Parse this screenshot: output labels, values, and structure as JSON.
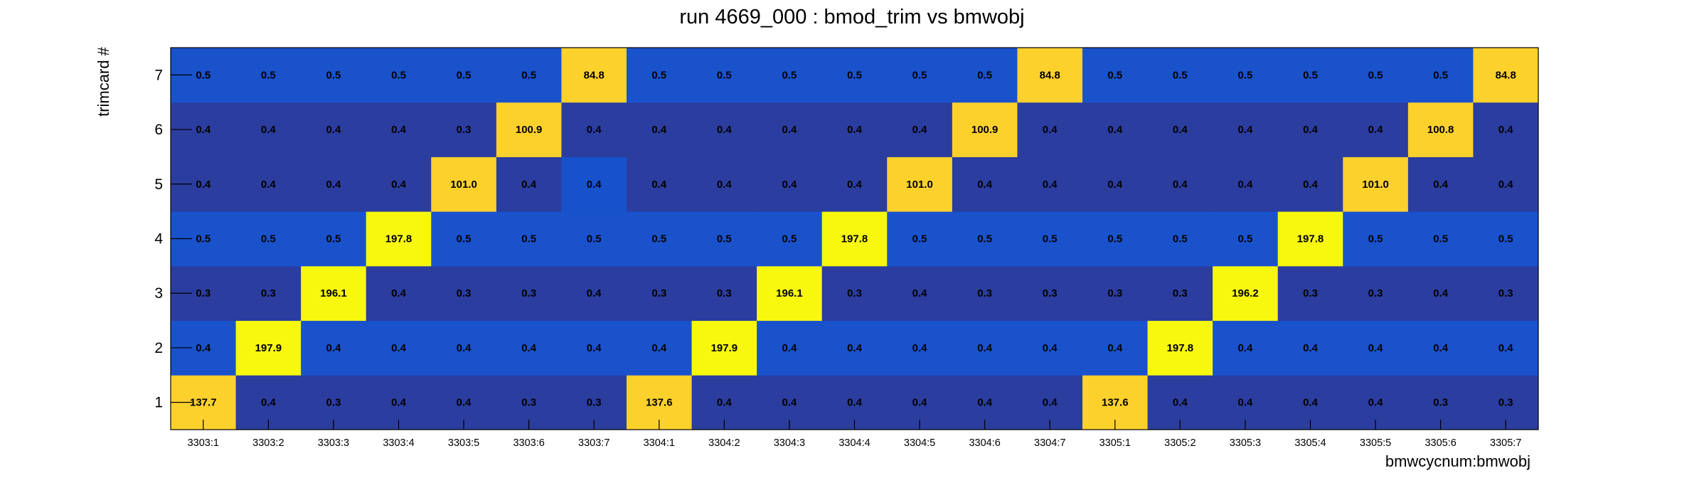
{
  "chart_data": {
    "type": "heatmap",
    "title": "run 4669_000 : bmod_trim vs bmwobj",
    "xlabel": "bmwcycnum:bmwobj",
    "ylabel": "trimcard #",
    "x_categories": [
      "3303:1",
      "3303:2",
      "3303:3",
      "3303:4",
      "3303:5",
      "3303:6",
      "3303:7",
      "3304:1",
      "3304:2",
      "3304:3",
      "3304:4",
      "3304:5",
      "3304:6",
      "3304:7",
      "3305:1",
      "3305:2",
      "3305:3",
      "3305:4",
      "3305:5",
      "3305:6",
      "3305:7"
    ],
    "y_categories": [
      "1",
      "2",
      "3",
      "4",
      "5",
      "6",
      "7"
    ],
    "grid": false,
    "values": [
      [
        "137.7",
        "0.4",
        "0.3",
        "0.4",
        "0.4",
        "0.3",
        "0.3",
        "137.6",
        "0.4",
        "0.4",
        "0.4",
        "0.4",
        "0.4",
        "0.4",
        "137.6",
        "0.4",
        "0.4",
        "0.4",
        "0.4",
        "0.3",
        "0.3"
      ],
      [
        "0.4",
        "197.9",
        "0.4",
        "0.4",
        "0.4",
        "0.4",
        "0.4",
        "0.4",
        "197.9",
        "0.4",
        "0.4",
        "0.4",
        "0.4",
        "0.4",
        "0.4",
        "197.8",
        "0.4",
        "0.4",
        "0.4",
        "0.4",
        "0.4"
      ],
      [
        "0.3",
        "0.3",
        "196.1",
        "0.4",
        "0.3",
        "0.3",
        "0.4",
        "0.3",
        "0.3",
        "196.1",
        "0.3",
        "0.4",
        "0.3",
        "0.3",
        "0.3",
        "0.3",
        "196.2",
        "0.3",
        "0.3",
        "0.4",
        "0.3"
      ],
      [
        "0.5",
        "0.5",
        "0.5",
        "197.8",
        "0.5",
        "0.5",
        "0.5",
        "0.5",
        "0.5",
        "0.5",
        "197.8",
        "0.5",
        "0.5",
        "0.5",
        "0.5",
        "0.5",
        "0.5",
        "197.8",
        "0.5",
        "0.5",
        "0.5"
      ],
      [
        "0.4",
        "0.4",
        "0.4",
        "0.4",
        "101.0",
        "0.4",
        "0.4",
        "0.4",
        "0.4",
        "0.4",
        "0.4",
        "101.0",
        "0.4",
        "0.4",
        "0.4",
        "0.4",
        "0.4",
        "0.4",
        "101.0",
        "0.4",
        "0.4"
      ],
      [
        "0.4",
        "0.4",
        "0.4",
        "0.4",
        "0.3",
        "100.9",
        "0.4",
        "0.4",
        "0.4",
        "0.4",
        "0.4",
        "0.4",
        "100.9",
        "0.4",
        "0.4",
        "0.4",
        "0.4",
        "0.4",
        "0.4",
        "100.8",
        "0.4"
      ],
      [
        "0.5",
        "0.5",
        "0.5",
        "0.5",
        "0.5",
        "0.5",
        "84.8",
        "0.5",
        "0.5",
        "0.5",
        "0.5",
        "0.5",
        "0.5",
        "84.8",
        "0.5",
        "0.5",
        "0.5",
        "0.5",
        "0.5",
        "0.5",
        "84.8"
      ]
    ],
    "colors": {
      "low_row_dark": "#2B3D9F",
      "low_row_mid": "#1A52CC",
      "low_cell_alt": "#1752CC",
      "high_max": "#F8F80E",
      "high_mid": "#FDD12C",
      "frame": "#000000"
    }
  }
}
